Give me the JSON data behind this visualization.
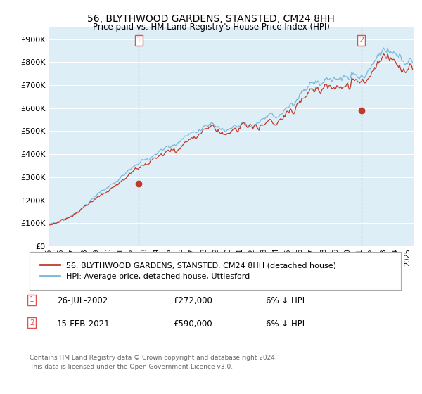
{
  "title": "56, BLYTHWOOD GARDENS, STANSTED, CM24 8HH",
  "subtitle": "Price paid vs. HM Land Registry's House Price Index (HPI)",
  "legend_line1": "56, BLYTHWOOD GARDENS, STANSTED, CM24 8HH (detached house)",
  "legend_line2": "HPI: Average price, detached house, Uttlesford",
  "sale1_date": "26-JUL-2002",
  "sale1_price": 272000,
  "sale1_label": "6% ↓ HPI",
  "sale2_date": "15-FEB-2021",
  "sale2_price": 590000,
  "sale2_label": "6% ↓ HPI",
  "footnote": "Contains HM Land Registry data © Crown copyright and database right 2024.\nThis data is licensed under the Open Government Licence v3.0.",
  "hpi_color": "#7ab8d9",
  "price_color": "#c0392b",
  "sale_vline_color": "#e05050",
  "background_color": "#ffffff",
  "plot_bg_color": "#ddeef6",
  "grid_color": "#ffffff",
  "ylim": [
    0,
    950000
  ],
  "yticks": [
    0,
    100000,
    200000,
    300000,
    400000,
    500000,
    600000,
    700000,
    800000,
    900000
  ],
  "sale1_t": 2002.542,
  "sale2_t": 2021.125,
  "xstart": 1995,
  "xend": 2025.5
}
